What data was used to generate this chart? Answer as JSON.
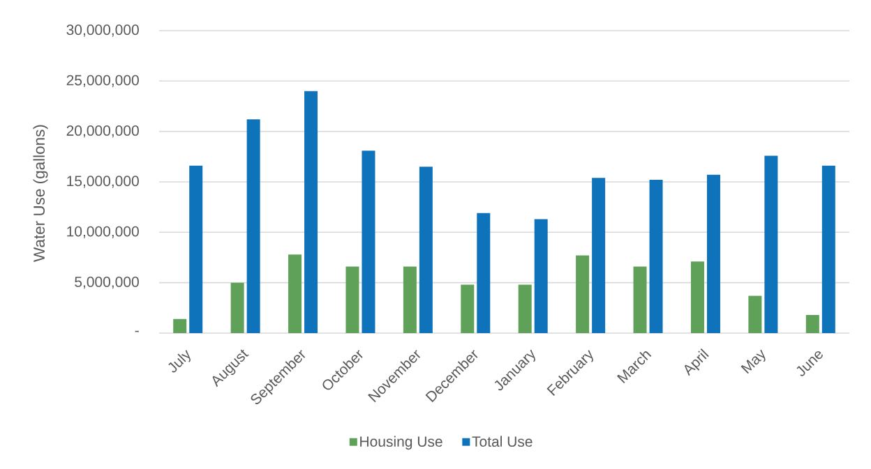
{
  "chart_data": {
    "type": "bar",
    "ylabel": "Water Use (gallons)",
    "categories": [
      "July",
      "August",
      "September",
      "October",
      "November",
      "December",
      "January",
      "February",
      "March",
      "April",
      "May",
      "June"
    ],
    "series": [
      {
        "name": "Housing Use",
        "color": "#60a15a",
        "values": [
          1400000,
          5000000,
          7800000,
          6600000,
          6600000,
          4800000,
          4800000,
          7700000,
          6600000,
          7100000,
          3700000,
          1800000
        ]
      },
      {
        "name": "Total Use",
        "color": "#0f73bb",
        "values": [
          16600000,
          21200000,
          24000000,
          18100000,
          16500000,
          11900000,
          11300000,
          15400000,
          15200000,
          15700000,
          17600000,
          16600000
        ]
      }
    ],
    "ylim": [
      0,
      30000000
    ],
    "yticks": [
      {
        "value": 0,
        "label": "-"
      },
      {
        "value": 5000000,
        "label": "5,000,000"
      },
      {
        "value": 10000000,
        "label": "10,000,000"
      },
      {
        "value": 15000000,
        "label": "15,000,000"
      },
      {
        "value": 20000000,
        "label": "20,000,000"
      },
      {
        "value": 25000000,
        "label": "25,000,000"
      },
      {
        "value": 30000000,
        "label": "30,000,000"
      }
    ],
    "grid": "y",
    "legend": "bottom"
  }
}
